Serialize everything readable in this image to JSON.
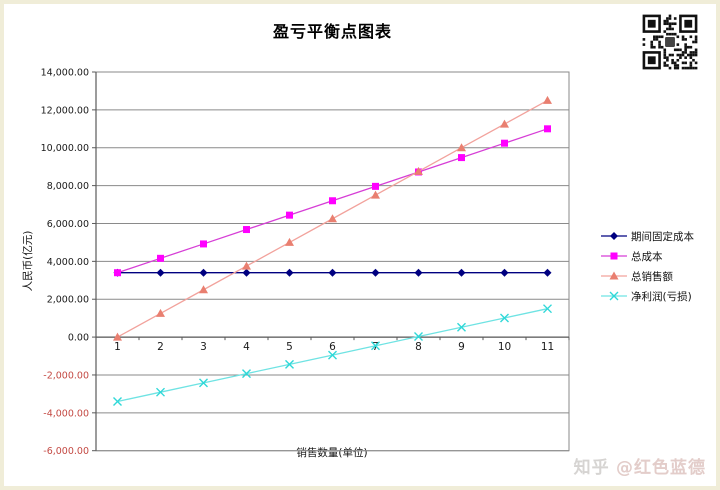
{
  "page": {
    "title": "盈亏平衡点图表",
    "watermark": {
      "brand": "知乎",
      "handle": "@红色蓝德"
    }
  },
  "chart_data": {
    "type": "line",
    "title": "盈亏平衡点图表",
    "xlabel": "销售数量(单位)",
    "ylabel": "人民币(亿元)",
    "categories": [
      1,
      2,
      3,
      4,
      5,
      6,
      7,
      8,
      9,
      10,
      11
    ],
    "ylim": [
      -6000,
      14000
    ],
    "ytick_step": 2000,
    "ytick_format": "thousands-2dp",
    "grid": true,
    "legend_position": "right",
    "colors": {
      "gridline": "#8a8a8a",
      "axis": "#5a5a5a",
      "tick_label": "#1a1a1a",
      "negative_tick_label": "#c44a44"
    },
    "series": [
      {
        "name": "期间固定成本",
        "marker": "diamond",
        "line_color": "#000080",
        "marker_color": "#000080",
        "values": [
          3400,
          3400,
          3400,
          3400,
          3400,
          3400,
          3400,
          3400,
          3400,
          3400,
          3400
        ]
      },
      {
        "name": "总成本",
        "marker": "square",
        "line_color": "#d63ed6",
        "marker_color": "#ff00ff",
        "values": [
          3400,
          4160,
          4920,
          5680,
          6440,
          7200,
          7960,
          8720,
          9480,
          10240,
          11000
        ]
      },
      {
        "name": "总销售额",
        "marker": "triangle",
        "line_color": "#f2a29c",
        "marker_color": "#e97f70",
        "values": [
          0,
          1250,
          2500,
          3750,
          5000,
          6250,
          7500,
          8750,
          10000,
          11250,
          12500
        ]
      },
      {
        "name": "净利润(亏损)",
        "marker": "x",
        "line_color": "#6fe3e3",
        "marker_color": "#2fd8d8",
        "values": [
          -3400,
          -2910,
          -2420,
          -1930,
          -1440,
          -950,
          -460,
          30,
          520,
          1010,
          1500
        ]
      }
    ]
  }
}
